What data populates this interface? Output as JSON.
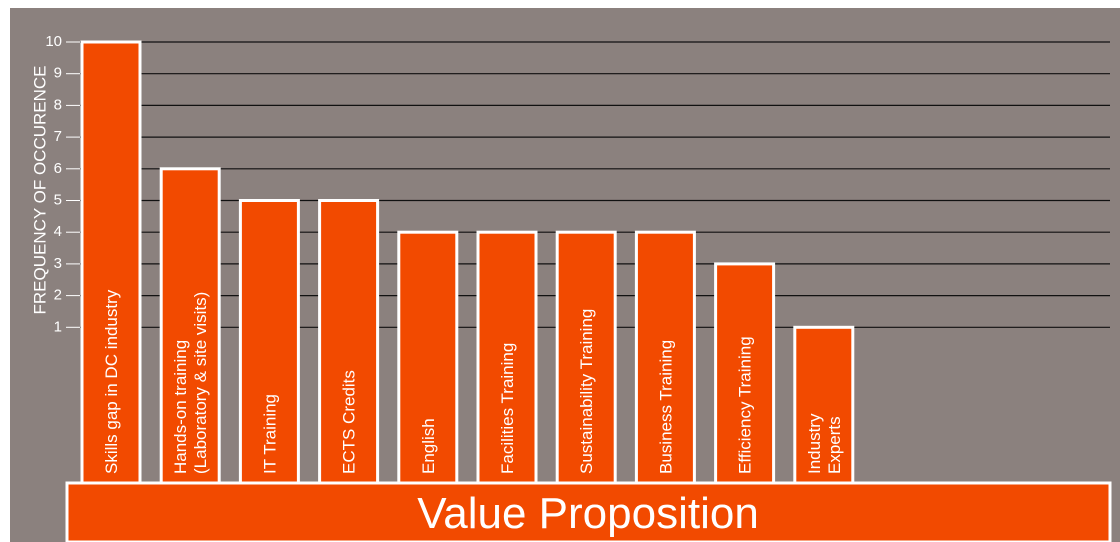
{
  "chart_data": {
    "type": "bar",
    "title": "Value Proposition",
    "y_label": "FREQUENCY OF OCCURENCE",
    "categories": [
      "Skills gap in DC industry",
      "Hands-on training\n(Laboratory & site visits)",
      "IT Training",
      "ECTS Credits",
      "English",
      "Facilities Training",
      "Sustainability Training",
      "Business Training",
      "Efficiency Training",
      "Industry\nExperts"
    ],
    "values": [
      10,
      6,
      5,
      5,
      4,
      4,
      4,
      4,
      3,
      1
    ],
    "color": "#f24a00",
    "ylim": [
      0,
      10
    ],
    "yticks": [
      1,
      2,
      3,
      4,
      5,
      6,
      7,
      8,
      9,
      10
    ],
    "grid": true
  }
}
